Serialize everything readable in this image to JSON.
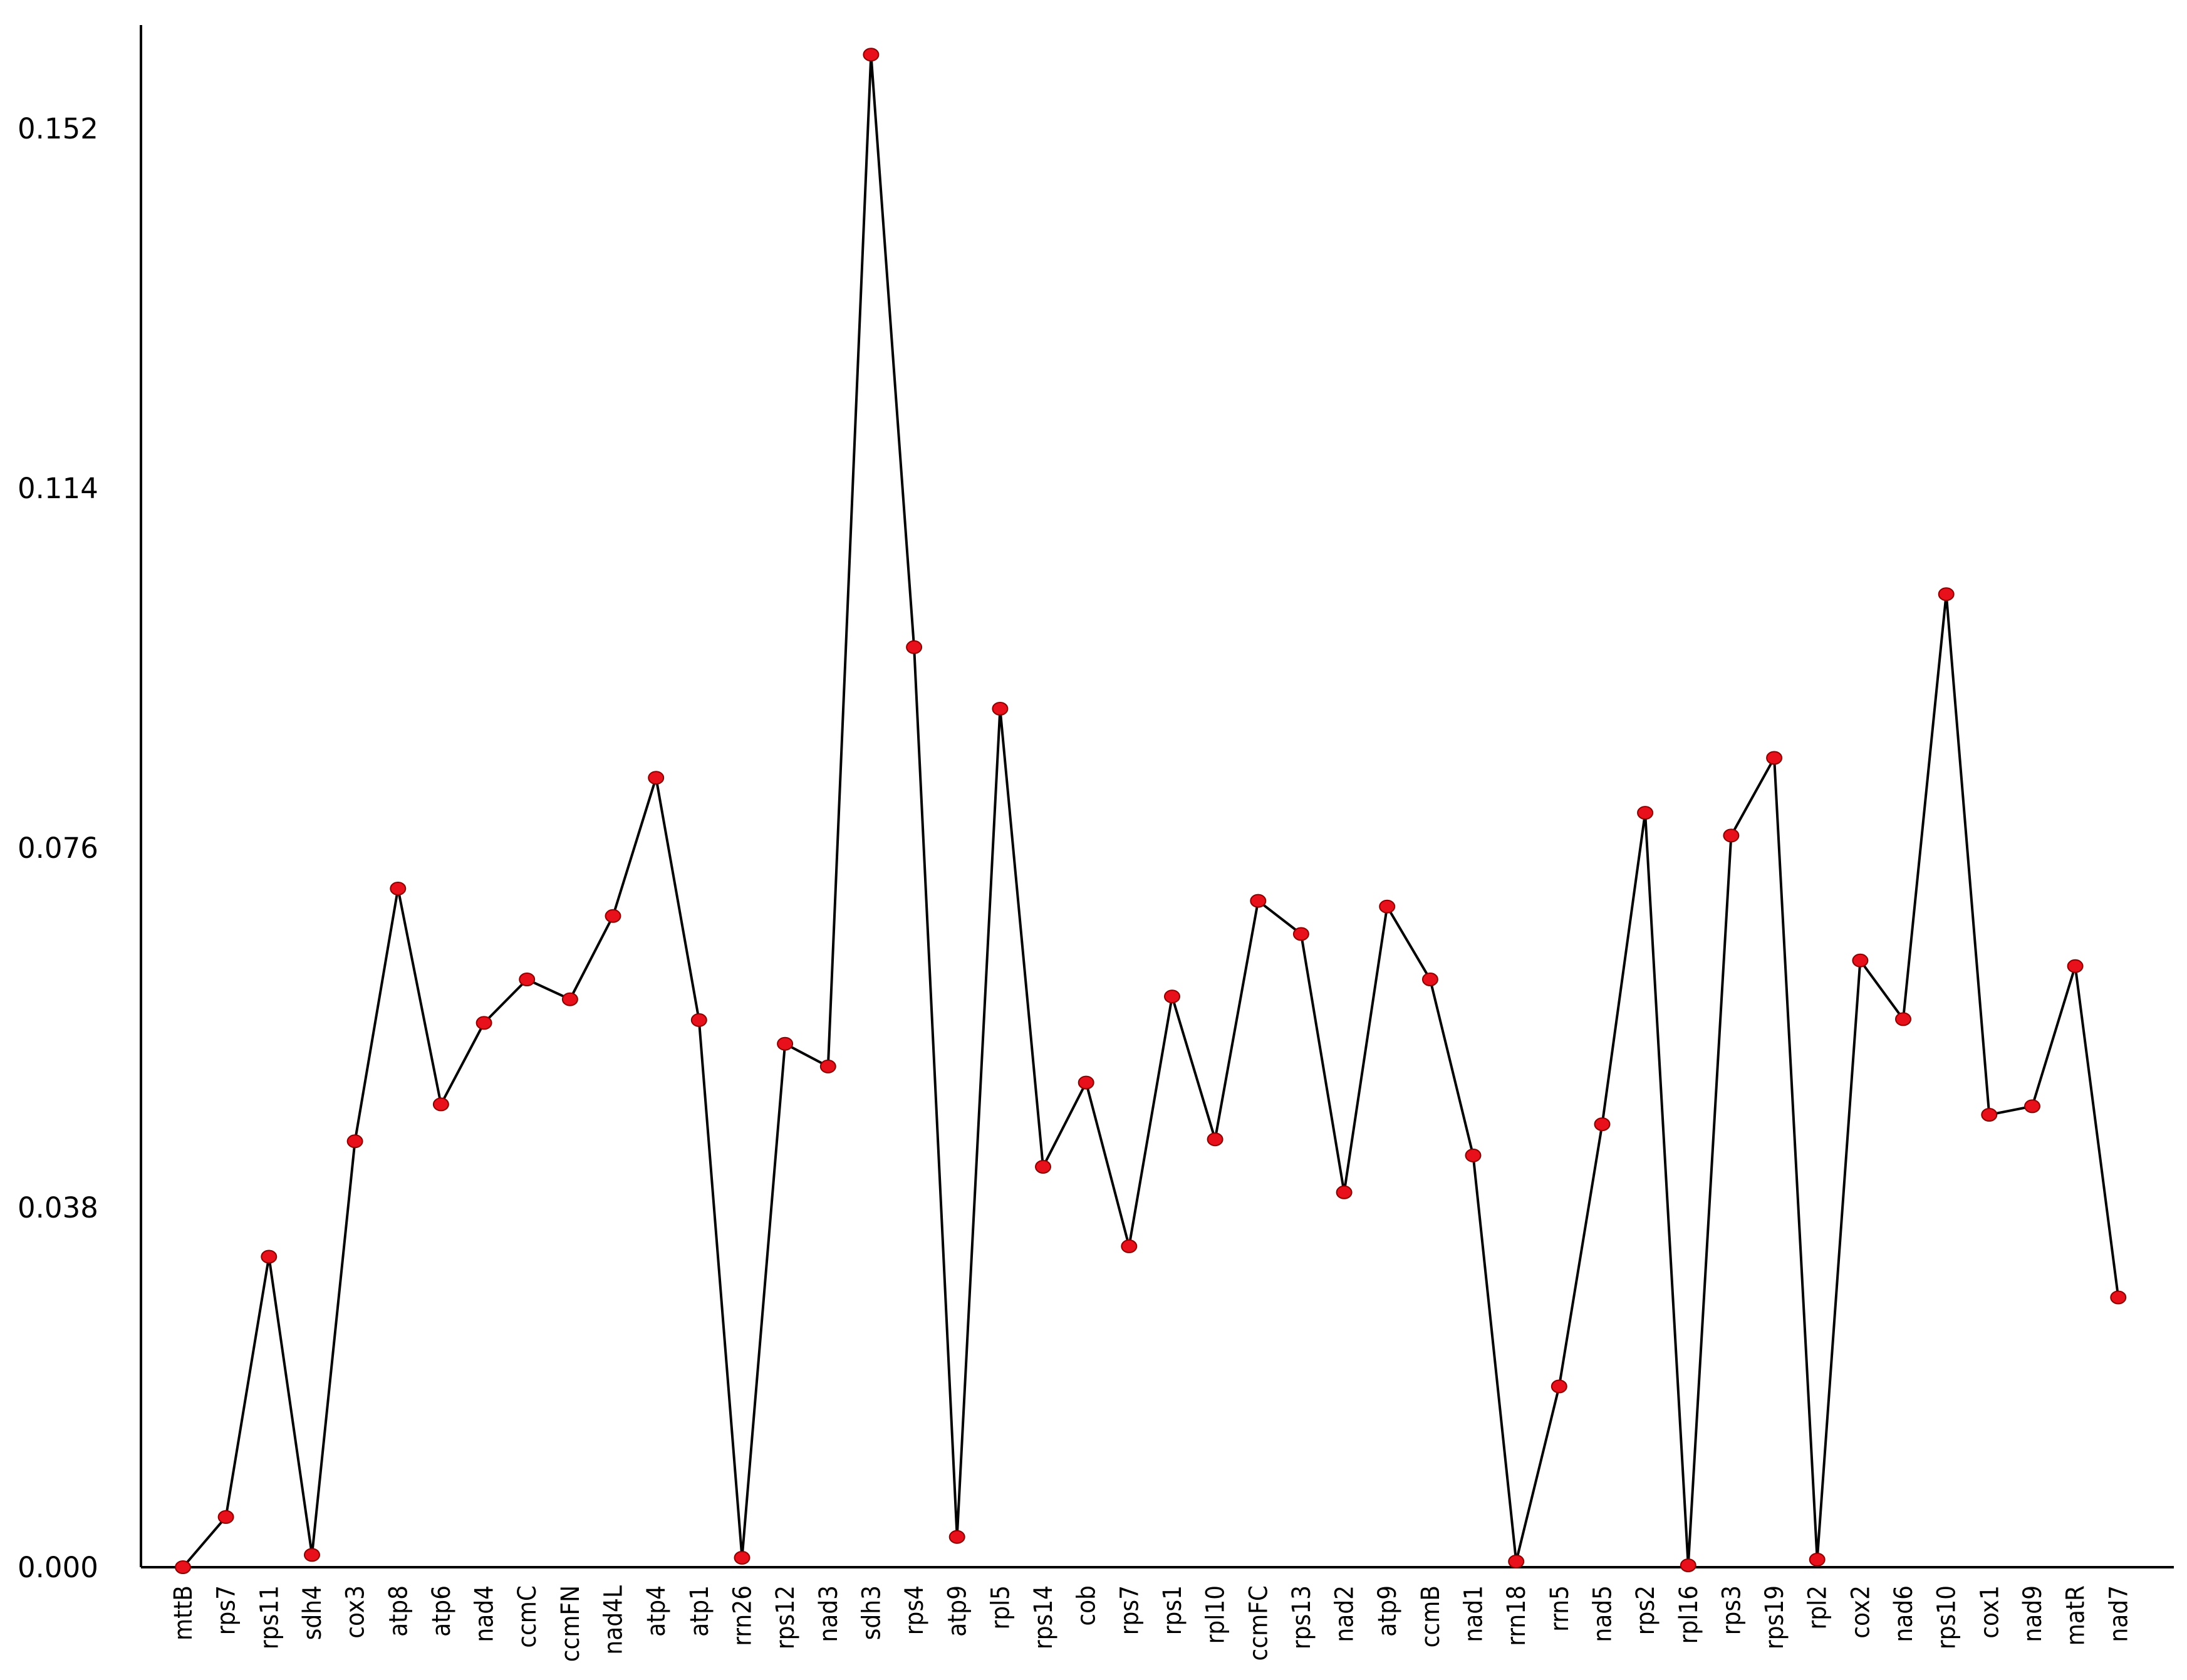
{
  "chart_data": {
    "type": "line",
    "title": "",
    "xlabel": "",
    "ylabel": "",
    "ylim": [
      0,
      0.1629
    ],
    "yticks": [
      "0.000",
      "0.038",
      "0.076",
      "0.114",
      "0.152"
    ],
    "ytick_values": [
      0,
      0.038,
      0.076,
      0.114,
      0.152
    ],
    "grid": false,
    "colors": {
      "line": "#000000",
      "marker": "#e8101a",
      "marker_outline": "#8a0000"
    },
    "categories": [
      "mttB",
      "rps7",
      "rps11",
      "sdh4",
      "cox3",
      "atp8",
      "atp6",
      "nad4",
      "ccmC",
      "ccmFN",
      "nad4L",
      "atp4",
      "atp1",
      "rrn26",
      "rps12",
      "nad3",
      "sdh3",
      "rps4",
      "atp9",
      "rpl5",
      "rps14",
      "cob",
      "rps7",
      "rps1",
      "rpl10",
      "ccmFC",
      "rps13",
      "nad2",
      "atp9",
      "ccmB",
      "nad1",
      "rrn18",
      "rrn5",
      "nad5",
      "rps2",
      "rpl16",
      "rps3",
      "rps19",
      "rpl2",
      "cox2",
      "nad6",
      "rps10",
      "cox1",
      "nad9",
      "matR",
      "nad7"
    ],
    "series": [
      {
        "values": [
          0.0,
          0.0053,
          0.0328,
          0.0013,
          0.045,
          0.0717,
          0.0489,
          0.0575,
          0.0621,
          0.06,
          0.0688,
          0.0834,
          0.0578,
          0.001,
          0.0553,
          0.0529,
          0.1598,
          0.0972,
          0.0032,
          0.0907,
          0.0423,
          0.0512,
          0.0339,
          0.0603,
          0.0452,
          0.0704,
          0.0669,
          0.0396,
          0.0698,
          0.0621,
          0.0435,
          0.0006,
          0.0191,
          0.0468,
          0.0797,
          0.0002,
          0.0773,
          0.0855,
          0.0008,
          0.0641,
          0.0579,
          0.1028,
          0.0478,
          0.0487,
          0.0635,
          0.0285
        ]
      }
    ]
  }
}
